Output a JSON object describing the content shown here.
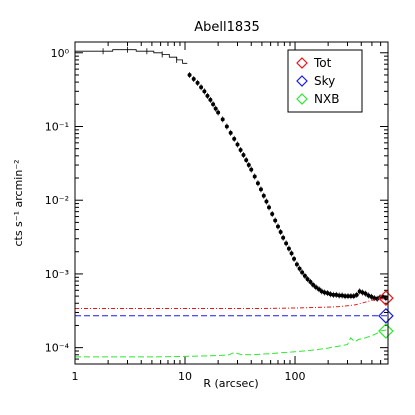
{
  "chart_data": {
    "type": "scatter",
    "title": "Abell1835",
    "xlabel": "R (arcsec)",
    "ylabel": "cts s⁻¹ arcmin⁻²",
    "xscale": "log",
    "yscale": "log",
    "xlim": [
      1,
      700
    ],
    "ylim": [
      6e-05,
      1.4
    ],
    "x_ticks": [
      {
        "value": 1,
        "label": "1"
      },
      {
        "value": 10,
        "label": "10"
      },
      {
        "value": 100,
        "label": "100"
      }
    ],
    "y_ticks": [
      {
        "value": 1,
        "label": "10⁰"
      },
      {
        "value": 0.1,
        "label": "10⁻¹"
      },
      {
        "value": 0.01,
        "label": "10⁻²"
      },
      {
        "value": 0.001,
        "label": "10⁻³"
      },
      {
        "value": 0.0001,
        "label": "10⁻⁴"
      }
    ],
    "legend": {
      "placement": "top-right",
      "entries": [
        {
          "label": "Tot",
          "color": "#e8151a",
          "marker": "diamond"
        },
        {
          "label": "Sky",
          "color": "#1a1ae8",
          "marker": "diamond"
        },
        {
          "label": "NXB",
          "color": "#2ee82e",
          "marker": "diamond"
        }
      ]
    },
    "series": [
      {
        "style": "histogram-step",
        "color": "#000000",
        "x": [
          1,
          1.8,
          2.2,
          3,
          3.6,
          4.5,
          5.2,
          6.2,
          7.2,
          8.4,
          9.5,
          10.5
        ],
        "y": [
          1.05,
          1.05,
          1.1,
          1.1,
          1.05,
          1.05,
          1.0,
          0.95,
          0.87,
          0.8,
          0.72,
          0.62
        ]
      },
      {
        "style": "points",
        "color": "#000000",
        "x": [
          11,
          12,
          13,
          14,
          15,
          16,
          17,
          18,
          19,
          20,
          22,
          24,
          26,
          28,
          30,
          32,
          34,
          36,
          38,
          40,
          43,
          46,
          49,
          52,
          55,
          58,
          62,
          66,
          70,
          74,
          78,
          83,
          88,
          93,
          98,
          104,
          110,
          116,
          123,
          130,
          138,
          146,
          155,
          165,
          175,
          186,
          198,
          210,
          223,
          237,
          252,
          268,
          285,
          303,
          322,
          342,
          364,
          387,
          411,
          437,
          465,
          494,
          525,
          558,
          593,
          630,
          670
        ],
        "y": [
          0.5,
          0.44,
          0.39,
          0.34,
          0.3,
          0.26,
          0.23,
          0.2,
          0.175,
          0.155,
          0.125,
          0.1,
          0.082,
          0.068,
          0.057,
          0.048,
          0.041,
          0.035,
          0.03,
          0.026,
          0.021,
          0.017,
          0.014,
          0.0115,
          0.0096,
          0.008,
          0.0065,
          0.0053,
          0.0044,
          0.0037,
          0.0031,
          0.0026,
          0.0022,
          0.0019,
          0.0016,
          0.00135,
          0.00118,
          0.00105,
          0.00094,
          0.00085,
          0.00078,
          0.00071,
          0.00066,
          0.00062,
          0.00058,
          0.00056,
          0.00055,
          0.00053,
          0.00052,
          0.00052,
          0.00051,
          0.00051,
          0.0005,
          0.0005,
          0.0005,
          0.0005,
          0.00052,
          0.00058,
          0.00056,
          0.00054,
          0.00051,
          0.00049,
          0.00047,
          0.00046,
          0.00048,
          0.00049,
          0.00047
        ]
      },
      {
        "name": "Tot",
        "style": "dash-dot",
        "color": "#e8151a",
        "x": [
          1,
          10,
          50,
          100,
          150,
          200,
          250,
          300,
          350,
          400,
          450,
          500,
          550,
          600,
          650,
          700
        ],
        "y": [
          0.00034,
          0.00034,
          0.00034,
          0.000345,
          0.00035,
          0.000355,
          0.00036,
          0.00037,
          0.00038,
          0.0004,
          0.00042,
          0.00044,
          0.00045,
          0.00046,
          0.00047,
          0.00047
        ]
      },
      {
        "name": "Sky",
        "style": "dashed",
        "color": "#1a1ae8",
        "x": [
          1,
          700
        ],
        "y": [
          0.00027,
          0.00027
        ]
      },
      {
        "name": "NXB",
        "style": "dashed",
        "color": "#2ee82e",
        "x": [
          1,
          5,
          10,
          20,
          25,
          28,
          32,
          40,
          60,
          100,
          150,
          200,
          250,
          300,
          320,
          350,
          380,
          420,
          450,
          500,
          550,
          600,
          650,
          700
        ],
        "y": [
          7.5e-05,
          7.5e-05,
          7.6e-05,
          7.8e-05,
          8e-05,
          8.6e-05,
          8.1e-05,
          8e-05,
          8.3e-05,
          8.8e-05,
          9.3e-05,
          9.85e-05,
          0.000105,
          0.00011,
          0.000135,
          0.00012,
          0.00013,
          0.000133,
          0.000138,
          0.000145,
          0.000155,
          0.000168,
          0.000172,
          0.000175
        ]
      }
    ],
    "end_markers": [
      {
        "series": "Tot",
        "x": 670,
        "y": 0.00047,
        "color": "#e8151a"
      },
      {
        "series": "Sky",
        "x": 670,
        "y": 0.00027,
        "color": "#1a1ae8"
      },
      {
        "series": "NXB",
        "x": 670,
        "y": 0.000168,
        "color": "#2ee82e"
      }
    ]
  }
}
